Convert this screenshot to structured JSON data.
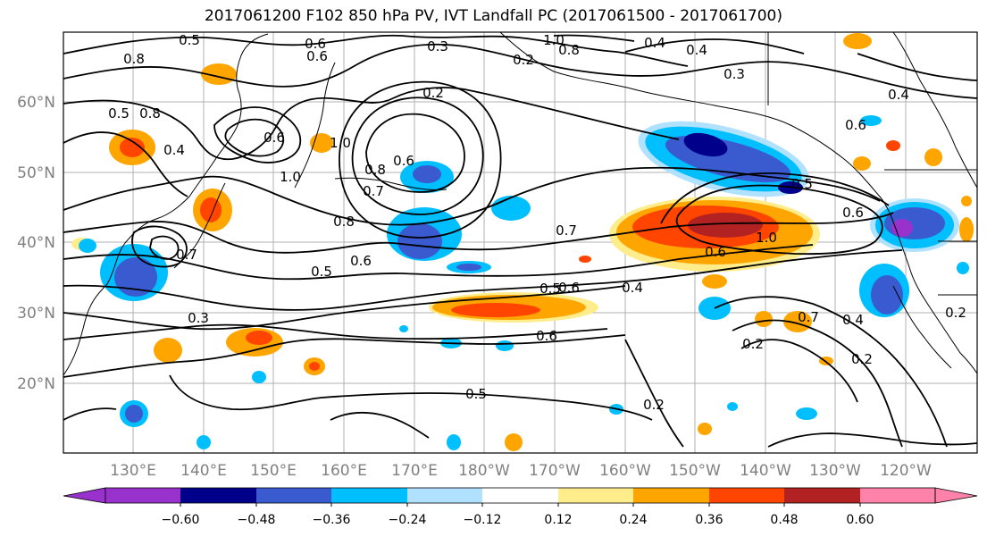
{
  "title": "2017061200 F102 850 hPa PV, IVT Landfall PC (2017061500 - 2017061700)",
  "lat_ticks": [
    "60°N",
    "50°N",
    "40°N",
    "30°N",
    "20°N"
  ],
  "lon_ticks": [
    "130°E",
    "140°E",
    "150°E",
    "160°E",
    "170°E",
    "180°W",
    "170°W",
    "160°W",
    "150°W",
    "140°W",
    "130°W",
    "120°W"
  ],
  "contour_labels": [
    "0.5",
    "0.8",
    "0.6",
    "0.3",
    "1.0",
    "0.8",
    "0.6",
    "0.4",
    "0.4",
    "0.2",
    "0.3",
    "0.2",
    "0.5",
    "0.8",
    "0.4",
    "0.6",
    "1.0",
    "0.4",
    "0.6",
    "0.8",
    "1.0",
    "0.5",
    "0.6",
    "0.7",
    "0.6",
    "0.8",
    "0.7",
    "0.6",
    "1.0",
    "0.6",
    "0.7",
    "0.6",
    "0.5",
    "0.4",
    "0.3",
    "0.5",
    "0.4",
    "0.6",
    "0.7",
    "0.2",
    "0.2",
    "0.2",
    "0.2",
    "0.5"
  ],
  "colorbar": {
    "tick_labels": [
      "−0.60",
      "−0.48",
      "−0.36",
      "−0.24",
      "−0.12",
      "0.12",
      "0.24",
      "0.36",
      "0.48",
      "0.60"
    ],
    "colors": [
      "#9932cc",
      "#00008b",
      "#3a5bd0",
      "#00bfff",
      "#b0e2ff",
      "#ffffff",
      "#ffec8b",
      "#ffa500",
      "#ff4500",
      "#b22222",
      "#ff82ab"
    ]
  },
  "colors": {
    "pos_low": "#ffec8b",
    "pos_mid": "#ffa500",
    "pos_high": "#ff4500",
    "pos_max": "#b22222",
    "neg_low": "#b0e2ff",
    "neg_mid": "#00bfff",
    "neg_high": "#3a5bd0",
    "neg_max": "#00008b",
    "neg_ext": "#9932cc"
  }
}
